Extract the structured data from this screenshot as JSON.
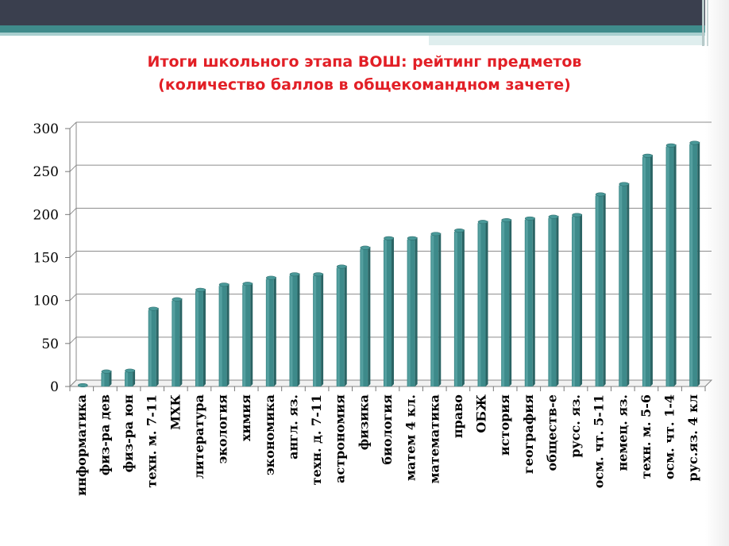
{
  "title_line1": "Итоги школьного этапа ВОШ: рейтинг предметов",
  "title_line2": "(количество баллов в общекомандном зачете)",
  "chart_data": {
    "type": "bar",
    "title": "Итоги школьного этапа ВОШ: рейтинг предметов (количество баллов в общекомандном зачете)",
    "xlabel": "",
    "ylabel": "",
    "ylim": [
      0,
      300
    ],
    "yticks": [
      "0",
      "50",
      "100",
      "150",
      "200",
      "250",
      "300"
    ],
    "grid": true,
    "bar_color": "#3d8a8a",
    "categories": [
      "информатика",
      "физ-ра дев",
      "физ-ра юн",
      "техн. м. 7-11",
      "МХК",
      "литература",
      "экология",
      "химия",
      "экономика",
      "англ. яз.",
      "техн. д. 7-11",
      "астрономия",
      "физика",
      "биология",
      "матем 4 кл.",
      "математика",
      "право",
      "ОБЖ",
      "история",
      "география",
      "обществ-е",
      "русс. яз.",
      "осм. чт. 5-11",
      "немец. яз.",
      "техн. м. 5-6",
      "осм. чт. 1-4",
      "рус.яз. 4 кл"
    ],
    "values": [
      0,
      16,
      17,
      89,
      100,
      111,
      117,
      118,
      125,
      129,
      129,
      138,
      160,
      171,
      171,
      176,
      180,
      190,
      192,
      194,
      196,
      198,
      222,
      234,
      267,
      279,
      282
    ]
  }
}
